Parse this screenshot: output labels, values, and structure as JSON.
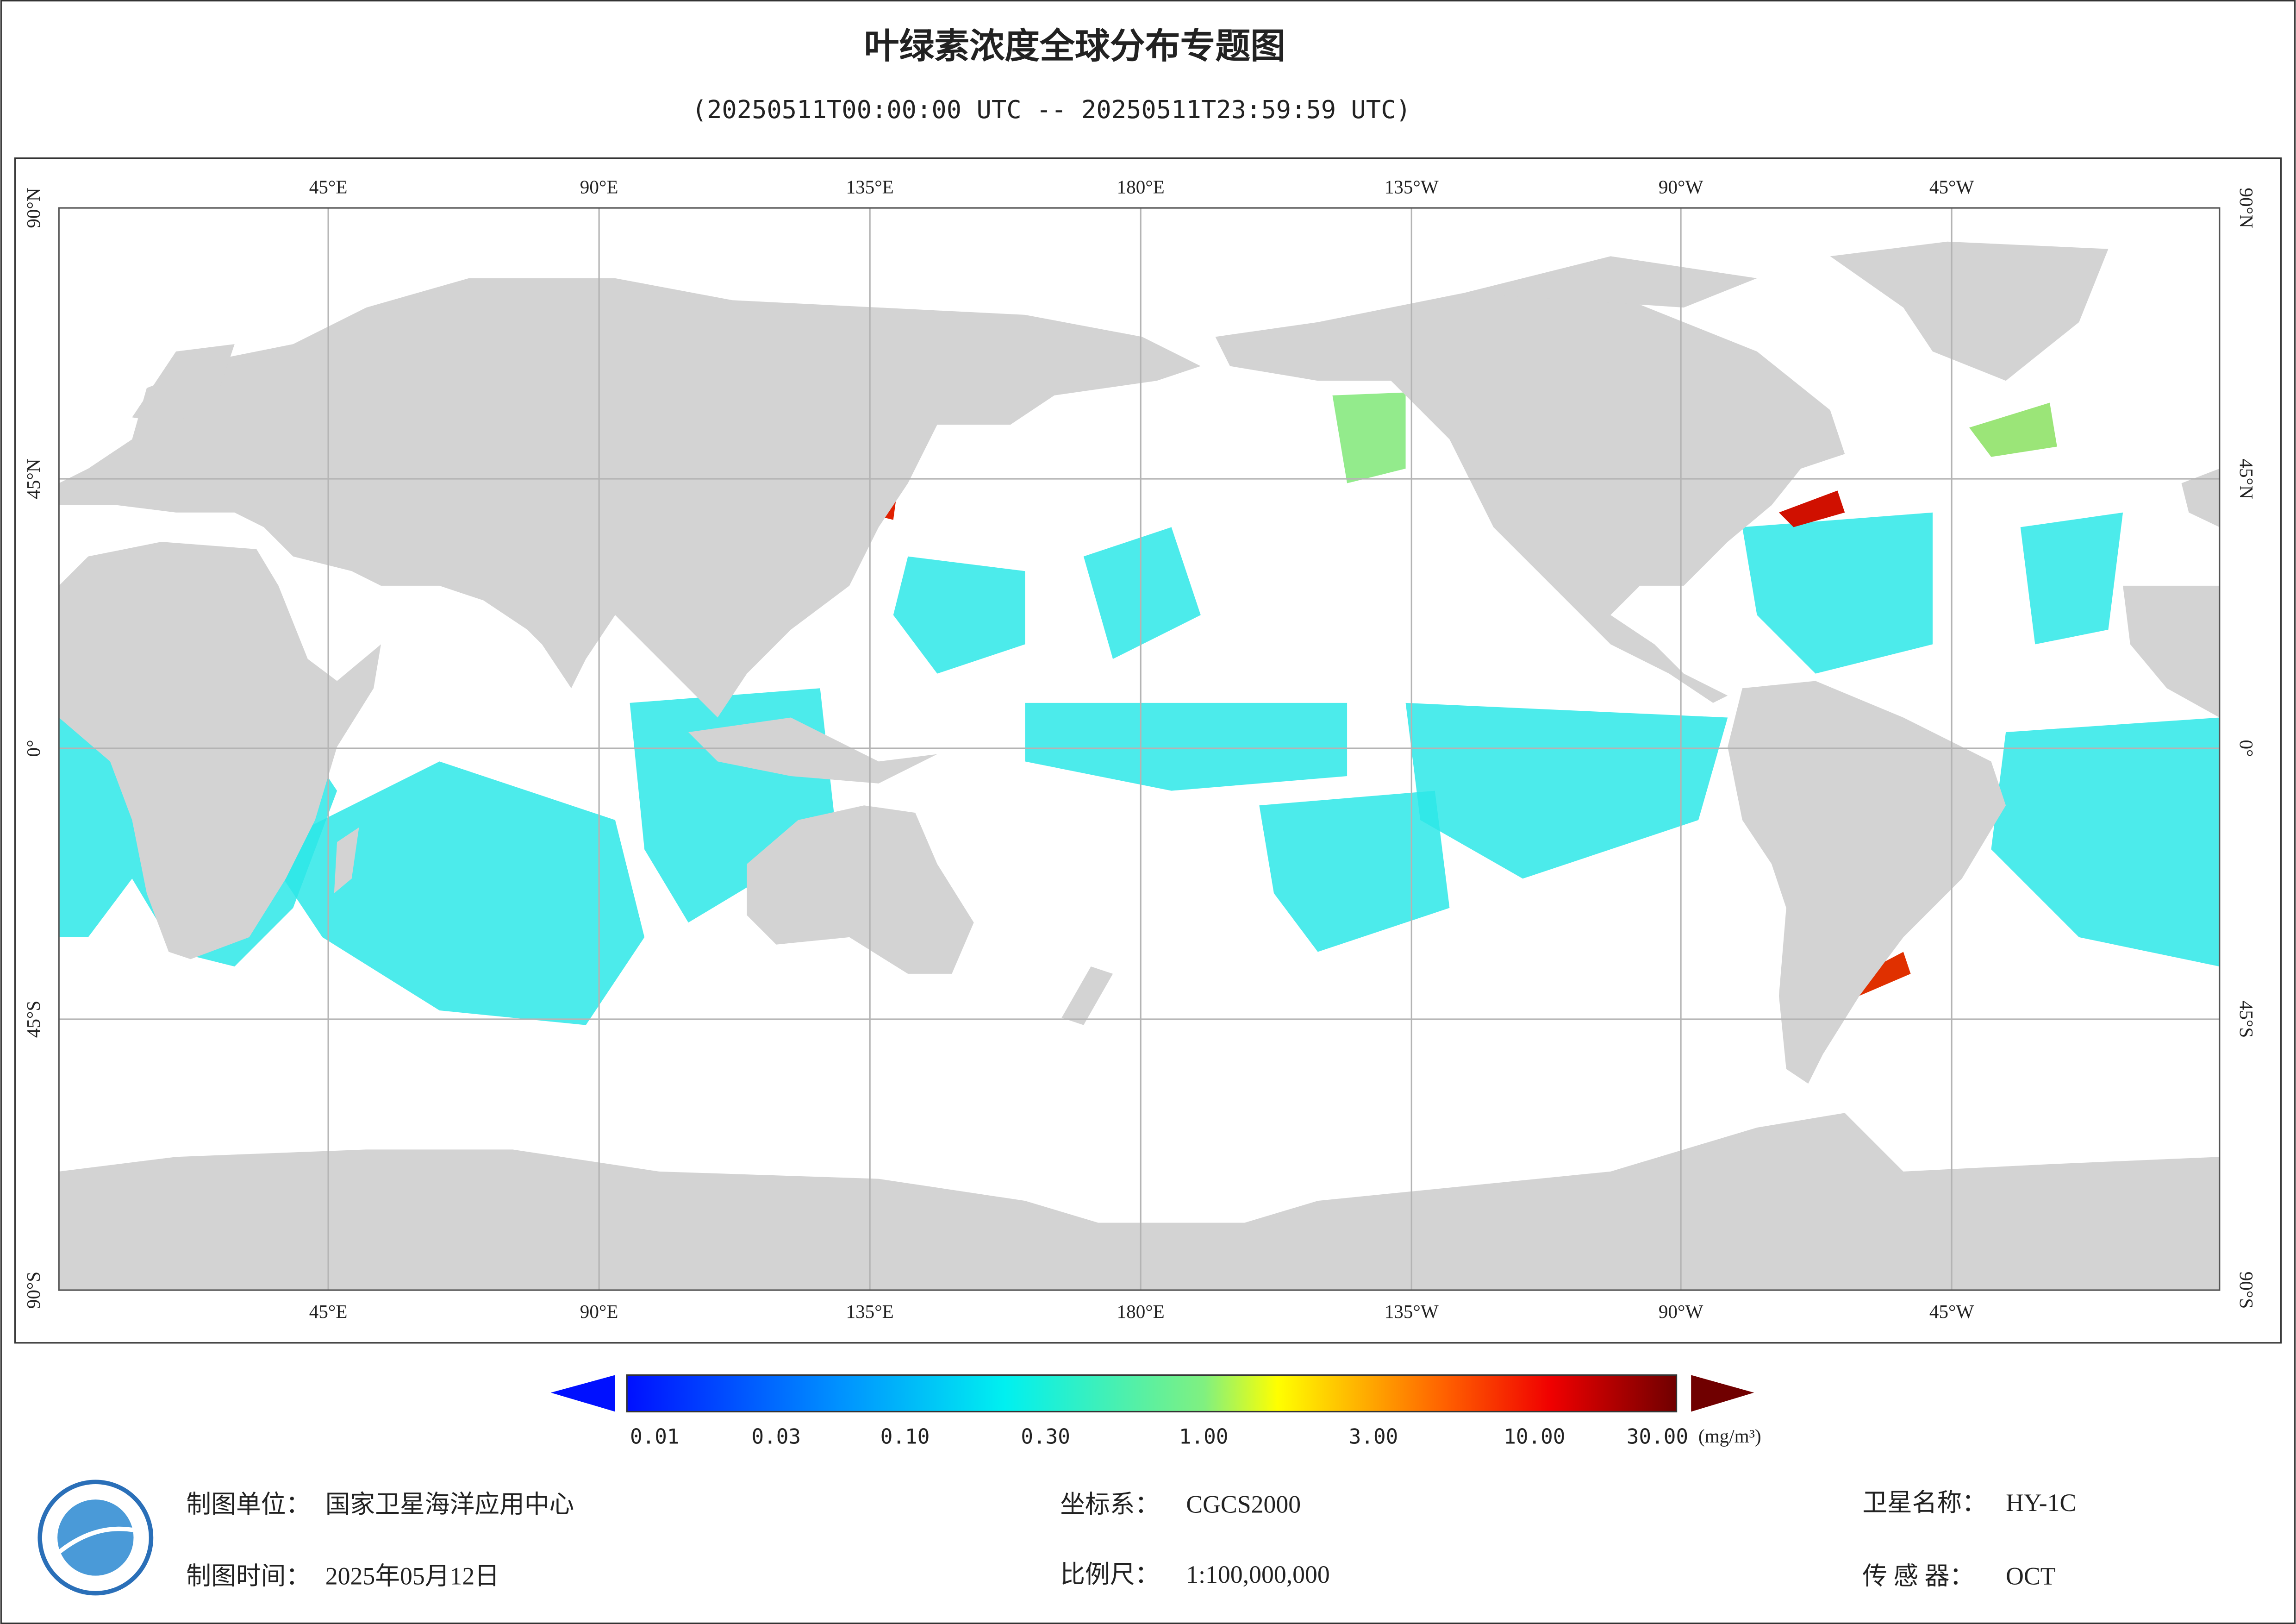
{
  "header": {
    "title": "叶绿素浓度全球分布专题图",
    "subtitle": "(20250511T00:00:00 UTC -- 20250511T23:59:59 UTC)"
  },
  "map": {
    "lon_labels": [
      "45°E",
      "90°E",
      "135°E",
      "180°E",
      "135°W",
      "90°W",
      "45°W"
    ],
    "lat_labels": [
      "90°N",
      "45°N",
      "0°",
      "45°S",
      "90°S"
    ]
  },
  "legend": {
    "ticks": [
      "0.01",
      "0.03",
      "0.10",
      "0.30",
      "1.00",
      "3.00",
      "10.00",
      "30.00"
    ],
    "unit": "(mg/m³)"
  },
  "footer": {
    "items": [
      {
        "label": "制图单位：",
        "value": "国家卫星海洋应用中心"
      },
      {
        "label": "坐标系：",
        "value": "CGCS2000"
      },
      {
        "label": "卫星名称：",
        "value": "HY-1C"
      },
      {
        "label": "制图时间：",
        "value": "2025年05月12日"
      },
      {
        "label": "比例尺：",
        "value": "1:100,000,000"
      },
      {
        "label": "传 感 器：",
        "value": "OCT"
      }
    ]
  }
}
